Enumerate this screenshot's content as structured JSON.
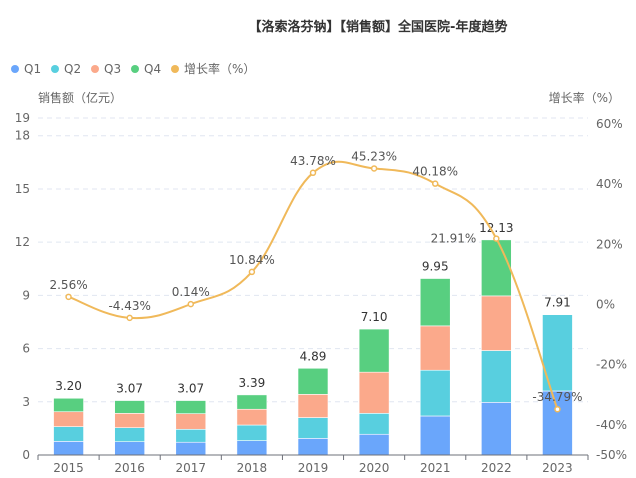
{
  "chart_data": {
    "type": "bar",
    "title": "【洛索洛芬钠】【销售额】全国医院-年度趋势",
    "ylabel": "销售额（亿元）",
    "y2label": "增长率（%）",
    "categories": [
      "2015",
      "2016",
      "2017",
      "2018",
      "2019",
      "2020",
      "2021",
      "2022",
      "2023"
    ],
    "ylim": [
      0,
      19
    ],
    "yticks": [
      0,
      3,
      6,
      9,
      12,
      15,
      18,
      19
    ],
    "y2lim": [
      -50,
      60
    ],
    "y2ticks": [
      -50,
      -40,
      -20,
      0,
      20,
      40,
      60
    ],
    "grid": true,
    "legend_position": "top-left",
    "series": [
      {
        "name": "Q1",
        "color": "#6aa6fb",
        "values": [
          0.77,
          0.75,
          0.72,
          0.81,
          0.94,
          1.17,
          2.2,
          2.97,
          3.61
        ]
      },
      {
        "name": "Q2",
        "color": "#58cfdf",
        "values": [
          0.83,
          0.79,
          0.73,
          0.88,
          1.17,
          1.18,
          2.58,
          2.92,
          4.3
        ]
      },
      {
        "name": "Q3",
        "color": "#fba98b",
        "values": [
          0.84,
          0.81,
          0.88,
          0.89,
          1.31,
          2.32,
          2.5,
          3.08,
          null
        ]
      },
      {
        "name": "Q4",
        "color": "#58cf80",
        "values": [
          0.76,
          0.72,
          0.74,
          0.81,
          1.47,
          2.43,
          2.67,
          3.16,
          null
        ]
      }
    ],
    "totals": [
      "3.20",
      "3.07",
      "3.07",
      "3.39",
      "4.89",
      "7.10",
      "9.95",
      "12.13",
      "7.91"
    ],
    "growth": {
      "name": "增长率（%）",
      "color": "#f0b95a",
      "values": [
        2.56,
        -4.43,
        0.14,
        10.84,
        43.78,
        45.23,
        40.18,
        21.91,
        -34.79
      ],
      "labels": [
        "2.56%",
        "-4.43%",
        "0.14%",
        "10.84%",
        "43.78%",
        "45.23%",
        "40.18%",
        "21.91%",
        "-34.79%"
      ]
    }
  }
}
